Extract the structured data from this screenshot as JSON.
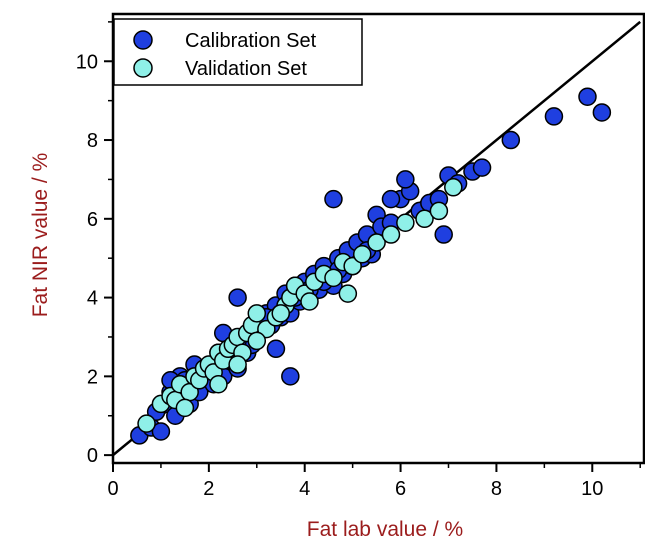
{
  "colors": {
    "calibration": "#1f3fe0",
    "validation": "#8ff0e8",
    "axis_title": "#9b1c1c",
    "marker_edge": "#000000"
  },
  "chart_data": {
    "type": "scatter",
    "xlabel": "Fat lab value / %",
    "ylabel": "Fat NIR value / %",
    "xlim": [
      0,
      11.1
    ],
    "ylim": [
      -0.2,
      11.2
    ],
    "xticks": [
      0,
      2,
      4,
      6,
      8,
      10
    ],
    "yticks": [
      0,
      2,
      4,
      6,
      8,
      10
    ],
    "grid": false,
    "legend": "top-left",
    "reference_line": {
      "x": [
        0,
        11
      ],
      "y": [
        0,
        11
      ]
    },
    "series": [
      {
        "name": "Calibration Set",
        "color": "#1f3fe0",
        "x": [
          0.55,
          0.8,
          0.9,
          1.0,
          1.1,
          1.2,
          1.3,
          1.4,
          1.5,
          1.6,
          1.7,
          1.8,
          1.9,
          2.0,
          2.1,
          2.2,
          2.3,
          2.4,
          2.5,
          2.6,
          2.7,
          2.8,
          2.9,
          3.0,
          3.1,
          3.2,
          3.3,
          3.4,
          3.5,
          3.6,
          3.7,
          3.8,
          3.9,
          4.0,
          4.1,
          4.2,
          4.3,
          4.4,
          4.5,
          4.6,
          4.7,
          4.8,
          4.9,
          5.0,
          5.1,
          5.2,
          5.3,
          5.4,
          5.5,
          5.6,
          5.8,
          6.0,
          6.2,
          6.4,
          6.6,
          6.8,
          7.0,
          7.2,
          7.5,
          7.7,
          8.3,
          9.2,
          9.9,
          10.2,
          1.2,
          1.5,
          1.7,
          2.0,
          2.3,
          2.6,
          2.9,
          3.2,
          3.5,
          3.8,
          4.1,
          4.4,
          4.7,
          5.0,
          5.3,
          3.4,
          3.7,
          2.6,
          4.6,
          6.1,
          5.8,
          6.9
        ],
        "y": [
          0.5,
          0.7,
          1.1,
          0.6,
          1.3,
          1.6,
          1.0,
          2.0,
          1.4,
          1.3,
          1.8,
          1.6,
          2.1,
          2.0,
          1.8,
          2.6,
          2.0,
          2.4,
          2.8,
          2.2,
          3.0,
          2.6,
          2.8,
          3.4,
          3.2,
          3.6,
          3.3,
          3.8,
          3.5,
          4.1,
          3.6,
          4.3,
          3.9,
          4.4,
          4.0,
          4.6,
          4.2,
          4.8,
          4.5,
          4.3,
          5.0,
          4.6,
          5.2,
          4.8,
          5.4,
          5.0,
          5.6,
          5.1,
          6.1,
          5.8,
          5.9,
          6.5,
          6.7,
          6.2,
          6.4,
          6.5,
          7.1,
          6.9,
          7.2,
          7.3,
          8.0,
          8.6,
          9.1,
          8.7,
          1.9,
          1.9,
          2.3,
          2.2,
          3.1,
          2.9,
          3.2,
          3.5,
          3.6,
          4.0,
          4.2,
          4.4,
          4.7,
          4.8,
          5.2,
          2.7,
          2.0,
          4.0,
          6.5,
          7.0,
          6.5,
          5.6
        ]
      },
      {
        "name": "Validation Set",
        "color": "#8ff0e8",
        "x": [
          0.7,
          1.0,
          1.2,
          1.3,
          1.4,
          1.6,
          1.7,
          1.8,
          1.9,
          2.0,
          2.1,
          2.2,
          2.3,
          2.4,
          2.5,
          2.6,
          2.7,
          2.8,
          2.9,
          3.0,
          3.2,
          3.4,
          3.6,
          3.7,
          3.8,
          4.0,
          4.2,
          4.4,
          4.6,
          4.8,
          5.0,
          5.2,
          5.5,
          5.8,
          6.1,
          6.5,
          6.8,
          7.1,
          1.5,
          2.2,
          2.6,
          3.0,
          3.5,
          4.1,
          4.9
        ],
        "y": [
          0.8,
          1.3,
          1.5,
          1.4,
          1.8,
          1.6,
          2.0,
          1.9,
          2.2,
          2.3,
          2.1,
          2.6,
          2.4,
          2.7,
          2.8,
          3.0,
          2.6,
          3.1,
          3.3,
          3.6,
          3.2,
          3.5,
          3.8,
          4.0,
          4.3,
          4.1,
          4.4,
          4.6,
          4.5,
          4.9,
          4.8,
          5.1,
          5.4,
          5.6,
          5.9,
          6.0,
          6.2,
          6.8,
          1.2,
          1.8,
          2.3,
          2.9,
          3.6,
          3.9,
          4.1
        ]
      }
    ]
  }
}
